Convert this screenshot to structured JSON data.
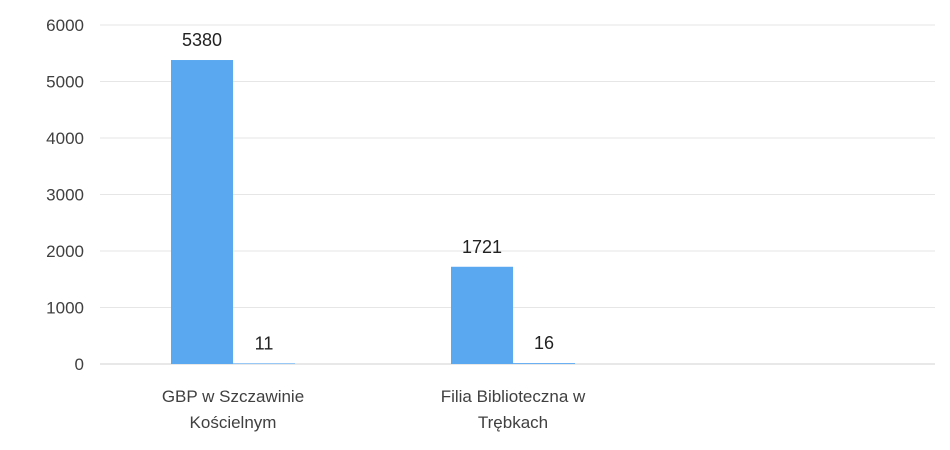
{
  "chart_data": {
    "type": "bar",
    "categories": [
      [
        "GBP w Szczawinie",
        "Kościelnym"
      ],
      [
        "Filia Biblioteczna w",
        "Trębkach"
      ]
    ],
    "series": [
      {
        "values": [
          5380,
          1721
        ],
        "color": "#5aa8f0"
      },
      {
        "values": [
          11,
          16
        ],
        "color": "#5aa8f0"
      }
    ],
    "ylim": [
      0,
      6000
    ],
    "yticks": [
      0,
      1000,
      2000,
      3000,
      4000,
      5000,
      6000
    ],
    "grid": true,
    "data_labels": true
  }
}
